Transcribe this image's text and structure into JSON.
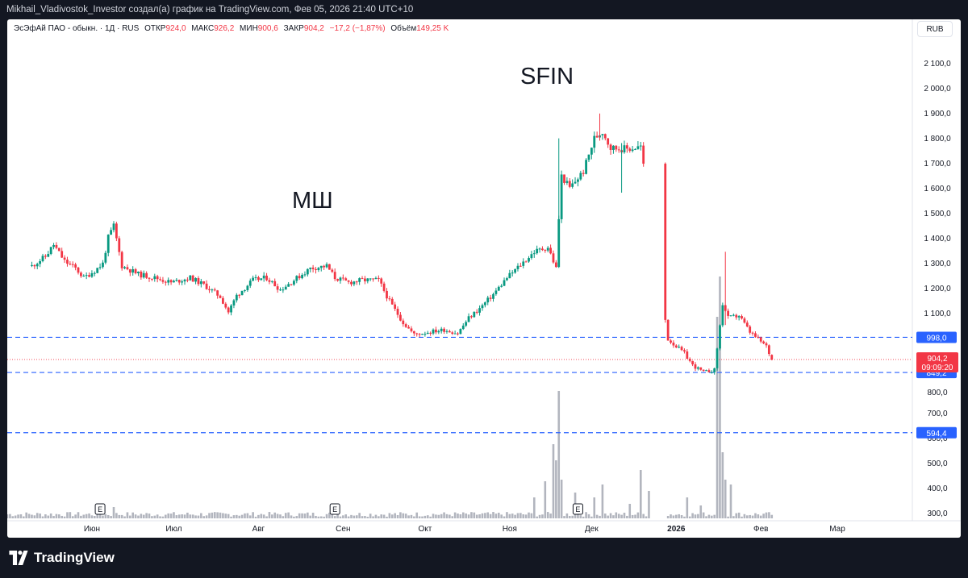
{
  "header": {
    "caption": "Mikhail_Vladivostok_Investor создал(а) график на TradingView.com, Фев 05, 2026 21:40 UTC+10"
  },
  "legend": {
    "symbol": "ЭсЭфАй ПАО - обыкн. · 1Д · RUS",
    "open_label": "ОТКР",
    "open": "924,0",
    "high_label": "МАКС",
    "high": "926,2",
    "low_label": "МИН",
    "low": "900,6",
    "close_label": "ЗАКР",
    "close": "904,2",
    "change": "−17,2 (−1,87%)",
    "volume_label": "Объём",
    "volume": "149,25 K"
  },
  "currency_button": "RUB",
  "footer": {
    "brand": "TradingView"
  },
  "colors": {
    "up": "#089981",
    "down": "#f23645",
    "level": "#2962ff",
    "volume": "#b2b5be",
    "price_badge": "#f23645"
  },
  "chart_data": {
    "type": "candlestick",
    "title": "",
    "annotations": [
      "SFIN",
      "МШ"
    ],
    "y_tick_labels": [
      "2 100,0",
      "2 000,0",
      "1 900,0",
      "1 800,0",
      "1 700,0",
      "1 600,0",
      "1 500,0",
      "1 400,0",
      "1 300,0",
      "1 200,0",
      "1 100,0",
      "800,0",
      "700,0",
      "600,0",
      "500,0",
      "400,0",
      "300,0"
    ],
    "x_tick_labels": [
      "Июн",
      "Июл",
      "Авг",
      "Сен",
      "Окт",
      "Ноя",
      "Дек",
      "2026",
      "Фев",
      "Мар"
    ],
    "ylim": [
      256,
      2207
    ],
    "levels": [
      {
        "value": 998.0,
        "label": "998,0"
      },
      {
        "value": 849.2,
        "label": "849,2"
      },
      {
        "value": 594.4,
        "label": "594,4"
      }
    ],
    "last_price": {
      "value": 904.2,
      "label": "904,2",
      "countdown": "09:09:20"
    },
    "earnings_markers": [
      "E",
      "E",
      "E"
    ],
    "series": [
      {
        "name": "price",
        "points": [
          {
            "date": "2025-05-10",
            "close": 1300
          },
          {
            "date": "2025-05-15",
            "close": 1340
          },
          {
            "date": "2025-05-18",
            "close": 1390
          },
          {
            "date": "2025-05-22",
            "close": 1320
          },
          {
            "date": "2025-05-26",
            "close": 1290
          },
          {
            "date": "2025-05-29",
            "close": 1250
          },
          {
            "date": "2025-06-02",
            "close": 1280
          },
          {
            "date": "2025-06-05",
            "close": 1310
          },
          {
            "date": "2025-06-07",
            "close": 1420
          },
          {
            "date": "2025-06-09",
            "close": 1470
          },
          {
            "date": "2025-06-12",
            "close": 1300
          },
          {
            "date": "2025-06-18",
            "close": 1265
          },
          {
            "date": "2025-06-24",
            "close": 1250
          },
          {
            "date": "2025-06-30",
            "close": 1230
          },
          {
            "date": "2025-07-07",
            "close": 1250
          },
          {
            "date": "2025-07-12",
            "close": 1220
          },
          {
            "date": "2025-07-18",
            "close": 1170
          },
          {
            "date": "2025-07-21",
            "close": 1105
          },
          {
            "date": "2025-07-24",
            "close": 1175
          },
          {
            "date": "2025-07-30",
            "close": 1240
          },
          {
            "date": "2025-08-04",
            "close": 1250
          },
          {
            "date": "2025-08-09",
            "close": 1200
          },
          {
            "date": "2025-08-14",
            "close": 1240
          },
          {
            "date": "2025-08-20",
            "close": 1290
          },
          {
            "date": "2025-08-26",
            "close": 1300
          },
          {
            "date": "2025-08-29",
            "close": 1250
          },
          {
            "date": "2025-09-03",
            "close": 1230
          },
          {
            "date": "2025-09-08",
            "close": 1240
          },
          {
            "date": "2025-09-14",
            "close": 1240
          },
          {
            "date": "2025-09-18",
            "close": 1150
          },
          {
            "date": "2025-09-23",
            "close": 1060
          },
          {
            "date": "2025-09-27",
            "close": 1010
          },
          {
            "date": "2025-10-02",
            "close": 1020
          },
          {
            "date": "2025-10-08",
            "close": 1030
          },
          {
            "date": "2025-10-13",
            "close": 1015
          },
          {
            "date": "2025-10-17",
            "close": 1080
          },
          {
            "date": "2025-10-21",
            "close": 1120
          },
          {
            "date": "2025-10-26",
            "close": 1180
          },
          {
            "date": "2025-10-31",
            "close": 1250
          },
          {
            "date": "2025-11-05",
            "close": 1305
          },
          {
            "date": "2025-11-10",
            "close": 1360
          },
          {
            "date": "2025-11-15",
            "close": 1380
          },
          {
            "date": "2025-11-18",
            "close": 1290
          },
          {
            "date": "2025-11-19",
            "close": 1500
          },
          {
            "date": "2025-11-20",
            "close": 1680
          },
          {
            "date": "2025-11-23",
            "close": 1630
          },
          {
            "date": "2025-11-28",
            "close": 1700
          },
          {
            "date": "2025-12-02",
            "close": 1840
          },
          {
            "date": "2025-12-05",
            "close": 1870
          },
          {
            "date": "2025-12-08",
            "close": 1800
          },
          {
            "date": "2025-12-14",
            "close": 1795
          },
          {
            "date": "2025-12-19",
            "close": 1805
          },
          {
            "date": "2025-12-29",
            "close": 990
          },
          {
            "date": "2026-01-04",
            "close": 930
          },
          {
            "date": "2026-01-07",
            "close": 880
          },
          {
            "date": "2026-01-11",
            "close": 850
          },
          {
            "date": "2026-01-15",
            "close": 860
          },
          {
            "date": "2026-01-18",
            "close": 1140
          },
          {
            "date": "2026-01-20",
            "close": 1080
          },
          {
            "date": "2026-01-24",
            "close": 1090
          },
          {
            "date": "2026-01-28",
            "close": 1020
          },
          {
            "date": "2026-02-03",
            "close": 960
          },
          {
            "date": "2026-02-05",
            "close": 904.2
          }
        ]
      }
    ]
  }
}
